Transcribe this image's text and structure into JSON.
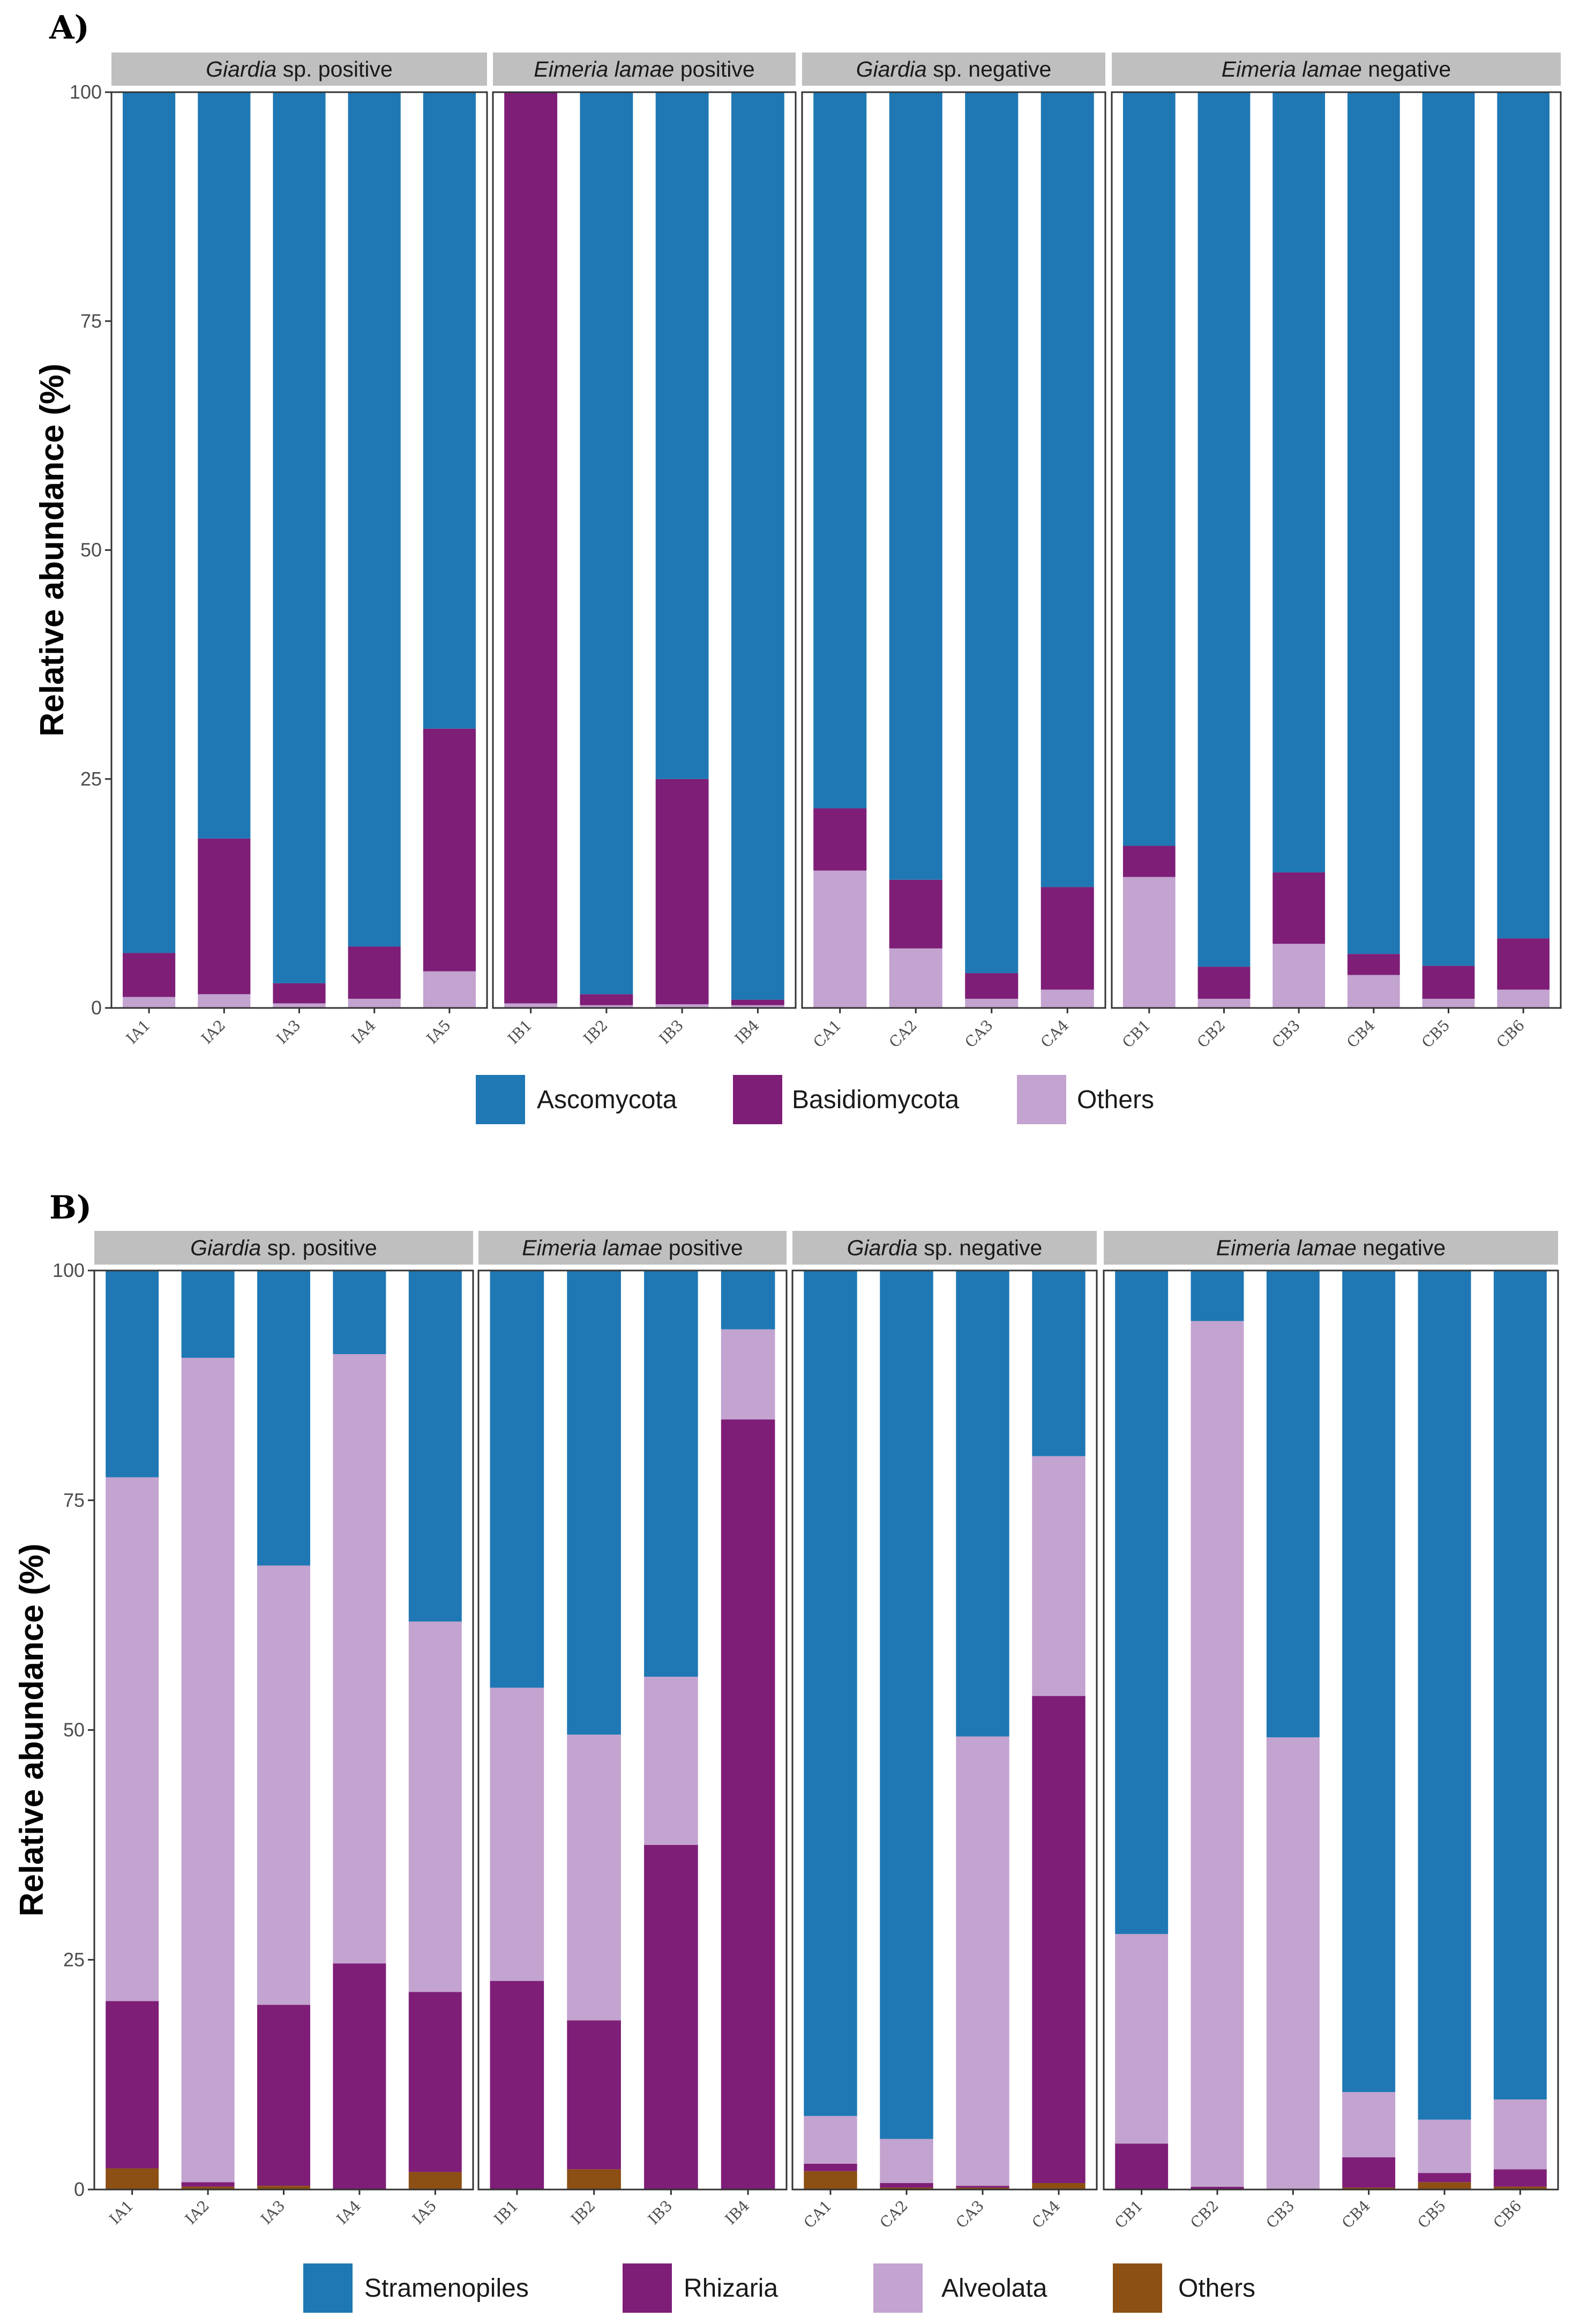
{
  "chart_data": [
    {
      "panel_label": "A)",
      "type": "bar",
      "stacked": true,
      "ylabel": "Relative abundance (%)",
      "ylim": [
        0,
        100
      ],
      "yticks": [
        "0",
        "25",
        "50",
        "75",
        "100"
      ],
      "facets": [
        {
          "name_italic": "Giardia",
          "name_rest": " sp. positive",
          "samples": [
            "IA1",
            "IA2",
            "IA3",
            "IA4",
            "IA5"
          ]
        },
        {
          "name_italic": "Eimeria lamae",
          "name_rest": " positive",
          "samples": [
            "IB1",
            "IB2",
            "IB3",
            "IB4"
          ]
        },
        {
          "name_italic": "Giardia",
          "name_rest": " sp. negative",
          "samples": [
            "CA1",
            "CA2",
            "CA3",
            "CA4"
          ]
        },
        {
          "name_italic": "Eimeria lamae",
          "name_rest": " negative",
          "samples": [
            "CB1",
            "CB2",
            "CB3",
            "CB4",
            "CB5",
            "CB6"
          ]
        }
      ],
      "series": [
        {
          "name": "Others",
          "color": "#c3a3cf",
          "values": [
            1.2,
            1.5,
            0.5,
            1.0,
            4.0,
            0.5,
            0.3,
            0.4,
            0.3,
            15.0,
            6.5,
            1.0,
            2.0,
            14.3,
            1.0,
            7.0,
            3.6,
            1.0,
            2.0
          ]
        },
        {
          "name": "Basidiomycota",
          "color": "#7e1e77",
          "values": [
            4.8,
            17.0,
            2.2,
            5.7,
            26.5,
            99.5,
            1.2,
            24.6,
            0.6,
            6.8,
            7.5,
            2.8,
            11.2,
            3.4,
            3.5,
            7.8,
            2.3,
            3.6,
            5.6
          ]
        },
        {
          "name": "Ascomycota",
          "color": "#1f78b4",
          "values": [
            94.0,
            81.5,
            97.3,
            93.3,
            69.5,
            0.0,
            98.5,
            75.0,
            99.1,
            78.2,
            86.0,
            96.2,
            86.8,
            82.3,
            95.5,
            85.2,
            94.1,
            95.4,
            92.4
          ]
        }
      ],
      "legend": [
        "Ascomycota",
        "Basidiomycota",
        "Others"
      ]
    },
    {
      "panel_label": "B)",
      "type": "bar",
      "stacked": true,
      "ylabel": "Relative abundance (%)",
      "ylim": [
        0,
        100
      ],
      "yticks": [
        "0",
        "25",
        "50",
        "75",
        "100"
      ],
      "facets": [
        {
          "name_italic": "Giardia",
          "name_rest": " sp. positive",
          "samples": [
            "IA1",
            "IA2",
            "IA3",
            "IA4",
            "IA5"
          ]
        },
        {
          "name_italic": "Eimeria lamae",
          "name_rest": " positive",
          "samples": [
            "IB1",
            "IB2",
            "IB3",
            "IB4"
          ]
        },
        {
          "name_italic": "Giardia",
          "name_rest": " sp. negative",
          "samples": [
            "CA1",
            "CA2",
            "CA3",
            "CA4"
          ]
        },
        {
          "name_italic": "Eimeria lamae",
          "name_rest": " negative",
          "samples": [
            "CB1",
            "CB2",
            "CB3",
            "CB4",
            "CB5",
            "CB6"
          ]
        }
      ],
      "series": [
        {
          "name": "Others",
          "color": "#8c4f14",
          "values": [
            2.3,
            0.3,
            0.4,
            0.0,
            1.9,
            0.0,
            2.2,
            0.0,
            0.0,
            2.0,
            0.2,
            0.2,
            0.7,
            0.0,
            0.0,
            0.0,
            0.2,
            0.8,
            0.3
          ]
        },
        {
          "name": "Rhizaria",
          "color": "#7e1e77",
          "values": [
            18.2,
            0.5,
            19.7,
            24.6,
            19.6,
            22.7,
            16.2,
            37.5,
            83.8,
            0.8,
            0.5,
            0.2,
            53.0,
            5.0,
            0.3,
            0.0,
            3.3,
            1.0,
            1.9
          ]
        },
        {
          "name": "Alveolata",
          "color": "#c3a3cf",
          "values": [
            57.0,
            89.7,
            47.8,
            66.3,
            40.3,
            31.9,
            31.1,
            18.3,
            9.8,
            5.2,
            4.8,
            48.9,
            26.1,
            22.8,
            94.2,
            49.2,
            7.1,
            5.8,
            7.6
          ]
        },
        {
          "name": "Stramenopiles",
          "color": "#1f78b4",
          "values": [
            22.5,
            9.5,
            32.1,
            9.1,
            38.2,
            45.4,
            50.5,
            44.2,
            6.4,
            92.0,
            94.5,
            50.7,
            20.2,
            72.2,
            5.5,
            50.8,
            89.4,
            92.4,
            90.2
          ]
        }
      ],
      "legend": [
        "Stramenopiles",
        "Rhizaria",
        "Alveolata",
        "Others"
      ]
    }
  ]
}
